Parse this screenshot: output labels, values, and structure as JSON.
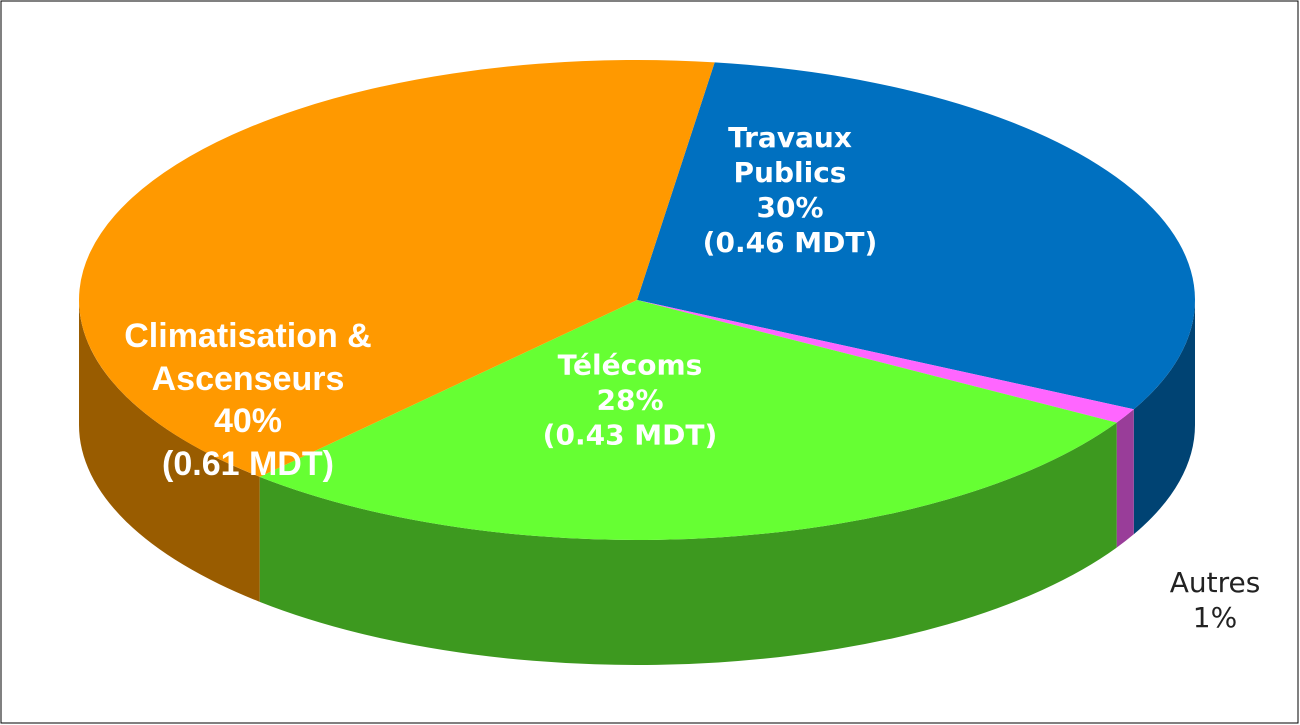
{
  "chart_data": {
    "type": "pie3d",
    "categories": [
      "Travaux Publics",
      "Autres",
      "Télécoms",
      "Climatisation & Ascenseurs"
    ],
    "values": [
      30,
      1,
      28,
      40
    ],
    "value_labels": [
      "30%",
      "1%",
      "28%",
      "40%"
    ],
    "amounts": [
      0.46,
      null,
      0.43,
      0.61
    ],
    "amount_labels": [
      "(0.46 MDT)",
      null,
      "(0.43 MDT)",
      "(0.61 MDT)"
    ],
    "colors": [
      "#0070c0",
      "#ff66ff",
      "#66ff33",
      "#ff9900"
    ]
  }
}
